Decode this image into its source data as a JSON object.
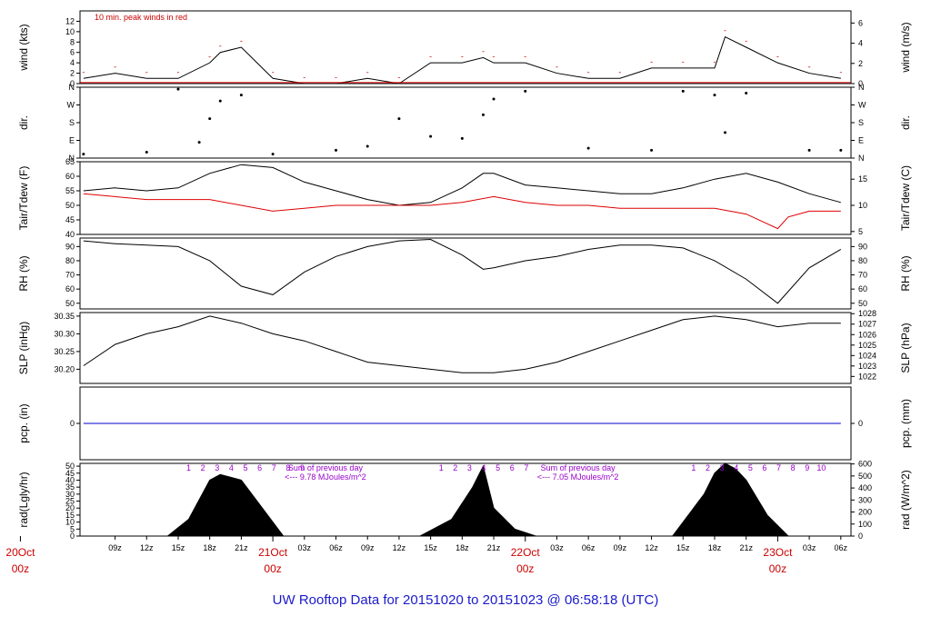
{
  "title": "UW Rooftop Data for 20151020  to  20151023 @ 06:58:18  (UTC)",
  "colors": {
    "title": "#1a1acc",
    "tair": "#000000",
    "tdew": "#dd0000",
    "peak": "#dd0000",
    "pcp": "#0000cc",
    "accent": "#9900cc",
    "date": "#cc0000"
  },
  "chart_data": {
    "type": "line",
    "x_axis": {
      "hour_ticks": [
        "09z",
        "12z",
        "15z",
        "18z",
        "21z",
        "03z",
        "06z",
        "09z",
        "12z",
        "15z",
        "18z",
        "21z",
        "03z",
        "06z",
        "09z",
        "12z",
        "15z",
        "18z",
        "21z",
        "03z",
        "06z"
      ],
      "hour_tick_x": [
        "2015-10-20T09",
        "2015-10-20T12",
        "2015-10-20T15",
        "2015-10-20T18",
        "2015-10-20T21",
        "2015-10-21T03",
        "2015-10-21T06",
        "2015-10-21T09",
        "2015-10-21T12",
        "2015-10-21T15",
        "2015-10-21T18",
        "2015-10-21T21",
        "2015-10-22T03",
        "2015-10-22T06",
        "2015-10-22T09",
        "2015-10-22T12",
        "2015-10-22T15",
        "2015-10-22T18",
        "2015-10-22T21",
        "2015-10-23T03",
        "2015-10-23T06"
      ],
      "dates": [
        {
          "label": "20Oct",
          "sub": "00z",
          "x": "2015-10-20T00"
        },
        {
          "label": "21Oct",
          "sub": "00z",
          "x": "2015-10-21T00"
        },
        {
          "label": "22Oct",
          "sub": "00z",
          "x": "2015-10-22T00"
        },
        {
          "label": "23Oct",
          "sub": "00z",
          "x": "2015-10-23T00"
        }
      ]
    },
    "panels": [
      {
        "id": "wind",
        "ylabel": "wind (kts)",
        "ylabel_right": "wind (m/s)",
        "ylim": [
          0,
          14
        ],
        "left_ticks": [
          "0",
          "2",
          "4",
          "6",
          "8",
          "10",
          "12"
        ],
        "right_ticks": [
          "0",
          "2",
          "4",
          "6"
        ],
        "annotation": "10 min. peak winds in red",
        "series": [
          {
            "x": [
              "2015-10-20T06",
              "2015-10-20T09",
              "2015-10-20T12",
              "2015-10-20T15",
              "2015-10-20T18",
              "2015-10-20T19",
              "2015-10-20T21",
              "2015-10-21T00",
              "2015-10-21T03",
              "2015-10-21T06",
              "2015-10-21T09",
              "2015-10-21T12",
              "2015-10-21T15",
              "2015-10-21T18",
              "2015-10-21T20",
              "2015-10-21T21",
              "2015-10-22T00",
              "2015-10-22T03",
              "2015-10-22T06",
              "2015-10-22T09",
              "2015-10-22T12",
              "2015-10-22T15",
              "2015-10-22T18",
              "2015-10-22T19",
              "2015-10-22T21",
              "2015-10-23T00",
              "2015-10-23T03",
              "2015-10-23T06"
            ],
            "y": [
              1,
              2,
              1,
              1,
              4,
              6,
              7,
              1,
              0,
              0,
              1,
              0,
              4,
              4,
              5,
              4,
              4,
              2,
              1,
              1,
              3,
              3,
              3,
              9,
              7,
              4,
              2,
              1
            ]
          }
        ]
      },
      {
        "id": "dir",
        "ylabel": "dir.",
        "ylabel_right": "dir.",
        "ylim": [
          0,
          360
        ],
        "left_ticks": [
          "N",
          "E",
          "S",
          "W",
          "N"
        ],
        "right_ticks": [
          "N",
          "E",
          "S",
          "W",
          "N"
        ],
        "series": [
          {
            "x": [
              "2015-10-20T06",
              "2015-10-20T12",
              "2015-10-20T15",
              "2015-10-20T17",
              "2015-10-20T18",
              "2015-10-20T19",
              "2015-10-20T21",
              "2015-10-21T00",
              "2015-10-21T06",
              "2015-10-21T09",
              "2015-10-21T12",
              "2015-10-21T15",
              "2015-10-21T18",
              "2015-10-21T20",
              "2015-10-21T21",
              "2015-10-22T00",
              "2015-10-22T06",
              "2015-10-22T12",
              "2015-10-22T15",
              "2015-10-22T18",
              "2015-10-22T19",
              "2015-10-22T21",
              "2015-10-23T03",
              "2015-10-23T06"
            ],
            "y": [
              20,
              30,
              350,
              80,
              200,
              290,
              320,
              20,
              40,
              60,
              200,
              110,
              100,
              220,
              300,
              340,
              50,
              40,
              340,
              320,
              130,
              330,
              40,
              40
            ]
          }
        ]
      },
      {
        "id": "temp",
        "ylabel": "Tair/Tdew (F)",
        "ylabel_right": "Tair/Tdew (C)",
        "ylim": [
          40,
          65
        ],
        "left_ticks": [
          "40",
          "45",
          "50",
          "55",
          "60",
          "65"
        ],
        "right_ticks": [
          "5",
          "10",
          "15"
        ],
        "series": [
          {
            "name": "",
            "color": "tair",
            "x": [
              "2015-10-20T06",
              "2015-10-20T09",
              "2015-10-20T12",
              "2015-10-20T15",
              "2015-10-20T18",
              "2015-10-20T21",
              "2015-10-21T00",
              "2015-10-21T03",
              "2015-10-21T06",
              "2015-10-21T09",
              "2015-10-21T12",
              "2015-10-21T15",
              "2015-10-21T18",
              "2015-10-21T20",
              "2015-10-21T21",
              "2015-10-22T00",
              "2015-10-22T03",
              "2015-10-22T06",
              "2015-10-22T09",
              "2015-10-22T12",
              "2015-10-22T15",
              "2015-10-22T18",
              "2015-10-22T21",
              "2015-10-23T00",
              "2015-10-23T03",
              "2015-10-23T06"
            ],
            "y": [
              55,
              56,
              55,
              56,
              61,
              64,
              63,
              58,
              55,
              52,
              50,
              51,
              56,
              61,
              61,
              57,
              56,
              55,
              54,
              54,
              56,
              59,
              61,
              58,
              54,
              51
            ]
          },
          {
            "name": "",
            "color": "tdew",
            "x": [
              "2015-10-20T06",
              "2015-10-20T09",
              "2015-10-20T12",
              "2015-10-20T15",
              "2015-10-20T18",
              "2015-10-20T21",
              "2015-10-21T00",
              "2015-10-21T03",
              "2015-10-21T06",
              "2015-10-21T09",
              "2015-10-21T12",
              "2015-10-21T15",
              "2015-10-21T18",
              "2015-10-21T21",
              "2015-10-22T00",
              "2015-10-22T03",
              "2015-10-22T06",
              "2015-10-22T09",
              "2015-10-22T12",
              "2015-10-22T15",
              "2015-10-22T18",
              "2015-10-22T21",
              "2015-10-23T00",
              "2015-10-23T01",
              "2015-10-23T03",
              "2015-10-23T06"
            ],
            "y": [
              54,
              53,
              52,
              52,
              52,
              50,
              48,
              49,
              50,
              50,
              50,
              50,
              51,
              53,
              51,
              50,
              50,
              49,
              49,
              49,
              49,
              47,
              42,
              46,
              48,
              48
            ]
          }
        ]
      },
      {
        "id": "rh",
        "ylabel": "RH (%)",
        "ylabel_right": "RH (%)",
        "ylim": [
          46,
          96
        ],
        "left_ticks": [
          "50",
          "60",
          "70",
          "80",
          "90"
        ],
        "right_ticks": [
          "50",
          "60",
          "70",
          "80",
          "90"
        ],
        "series": [
          {
            "x": [
              "2015-10-20T06",
              "2015-10-20T09",
              "2015-10-20T12",
              "2015-10-20T15",
              "2015-10-20T18",
              "2015-10-20T21",
              "2015-10-21T00",
              "2015-10-21T03",
              "2015-10-21T06",
              "2015-10-21T09",
              "2015-10-21T12",
              "2015-10-21T15",
              "2015-10-21T18",
              "2015-10-21T20",
              "2015-10-21T21",
              "2015-10-22T00",
              "2015-10-22T03",
              "2015-10-22T06",
              "2015-10-22T09",
              "2015-10-22T12",
              "2015-10-22T15",
              "2015-10-22T18",
              "2015-10-22T21",
              "2015-10-23T00",
              "2015-10-23T03",
              "2015-10-23T06"
            ],
            "y": [
              94,
              92,
              91,
              90,
              80,
              62,
              56,
              72,
              83,
              90,
              94,
              95,
              84,
              74,
              75,
              80,
              83,
              88,
              91,
              91,
              89,
              80,
              67,
              50,
              75,
              88
            ]
          }
        ]
      },
      {
        "id": "slp",
        "ylabel": "SLP (inHg)",
        "ylabel_right": "SLP (hPa)",
        "ylim": [
          30.16,
          30.36
        ],
        "left_ticks": [
          "30.20",
          "30.25",
          "30.30",
          "30.35"
        ],
        "right_ticks": [
          "1022",
          "1023",
          "1024",
          "1025",
          "1026",
          "1027",
          "1028"
        ],
        "series": [
          {
            "x": [
              "2015-10-20T06",
              "2015-10-20T09",
              "2015-10-20T12",
              "2015-10-20T15",
              "2015-10-20T18",
              "2015-10-20T21",
              "2015-10-21T00",
              "2015-10-21T03",
              "2015-10-21T06",
              "2015-10-21T09",
              "2015-10-21T12",
              "2015-10-21T15",
              "2015-10-21T18",
              "2015-10-21T21",
              "2015-10-22T00",
              "2015-10-22T03",
              "2015-10-22T06",
              "2015-10-22T09",
              "2015-10-22T12",
              "2015-10-22T15",
              "2015-10-22T18",
              "2015-10-22T21",
              "2015-10-23T00",
              "2015-10-23T03",
              "2015-10-23T06"
            ],
            "y": [
              30.21,
              30.27,
              30.3,
              30.32,
              30.35,
              30.33,
              30.3,
              30.28,
              30.25,
              30.22,
              30.21,
              30.2,
              30.19,
              30.19,
              30.2,
              30.22,
              30.25,
              30.28,
              30.31,
              30.34,
              30.35,
              30.34,
              30.32,
              30.33,
              30.33
            ]
          }
        ]
      },
      {
        "id": "pcp",
        "ylabel": "pcp. (in)",
        "ylabel_right": "pcp. (mm)",
        "ylim": [
          -1,
          1
        ],
        "left_ticks": [
          "0"
        ],
        "right_ticks": [
          "0"
        ],
        "series": [
          {
            "x": [
              "2015-10-20T06",
              "2015-10-23T06"
            ],
            "y": [
              0,
              0
            ]
          }
        ]
      },
      {
        "id": "rad",
        "ylabel": "rad(Lgly/hr)",
        "ylabel_right": "rad (W/m^2)",
        "ylim": [
          0,
          52
        ],
        "left_ticks": [
          "0",
          "5",
          "10",
          "15",
          "20",
          "25",
          "30",
          "35",
          "40",
          "45",
          "50"
        ],
        "right_ticks": [
          "0",
          "100",
          "200",
          "300",
          "400",
          "500",
          "600"
        ],
        "hour_markers": [
          {
            "labels": [
              "1",
              "2",
              "3",
              "4",
              "5",
              "6",
              "7",
              "8",
              "9"
            ],
            "start": "2015-10-20T16"
          },
          {
            "labels": [
              "1",
              "2",
              "3",
              "4",
              "5",
              "6",
              "7"
            ],
            "start": "2015-10-21T16"
          },
          {
            "labels": [
              "1",
              "2",
              "3",
              "4",
              "5",
              "6",
              "7",
              "8",
              "9",
              "10"
            ],
            "start": "2015-10-22T16"
          }
        ],
        "notes": [
          {
            "line1": "Sum of previous day",
            "line2": "<--- 9.78 MJoules/m^2"
          },
          {
            "line1": "Sum of previous day",
            "line2": "<--- 7.05 MJoules/m^2"
          }
        ],
        "series": [
          {
            "x": [
              "2015-10-20T14",
              "2015-10-20T16",
              "2015-10-20T18",
              "2015-10-20T19",
              "2015-10-20T21",
              "2015-10-20T22",
              "2015-10-21T01",
              "2015-10-21T14",
              "2015-10-21T17",
              "2015-10-21T19",
              "2015-10-21T20",
              "2015-10-21T21",
              "2015-10-21T23",
              "2015-10-22T01",
              "2015-10-22T14",
              "2015-10-22T17",
              "2015-10-22T18",
              "2015-10-22T19",
              "2015-10-22T20",
              "2015-10-22T21",
              "2015-10-22T23",
              "2015-10-23T01"
            ],
            "y": [
              0,
              12,
              40,
              44,
              40,
              30,
              0,
              0,
              12,
              35,
              50,
              20,
              5,
              0,
              0,
              30,
              45,
              52,
              48,
              40,
              15,
              0
            ]
          }
        ]
      }
    ]
  }
}
